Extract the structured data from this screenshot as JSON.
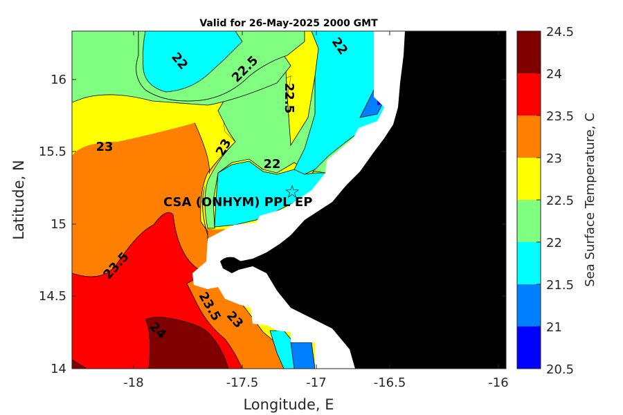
{
  "title": "Valid for 26-May-2025 2000 GMT",
  "xlabel": "Longitude, E",
  "ylabel": "Latitude, N",
  "colorbar_label": "Sea Surface Temperature, C",
  "station_label": "CSA (ONHYM) PPL EP",
  "station_marker": "☆",
  "x_ticks": [
    "-18",
    "-17.5",
    "-17",
    "-16.5",
    "-16"
  ],
  "y_ticks": [
    "16",
    "15.5",
    "15",
    "14.5",
    "14"
  ],
  "colorbar_ticks": [
    "24.5",
    "24",
    "23.5",
    "23",
    "22.5",
    "22",
    "21.5",
    "21",
    "20.5"
  ],
  "contour_labels": [
    "22",
    "22.5",
    "22",
    "22.5",
    "23",
    "23",
    "22",
    "23.5",
    "23.5",
    "23",
    "24"
  ],
  "chart_data": {
    "type": "heatmap",
    "title": "Valid for 26-May-2025 2000 GMT",
    "xlabel": "Longitude, E",
    "ylabel": "Latitude, N",
    "xlim": [
      -18.45,
      -15.9
    ],
    "ylim": [
      14.0,
      16.33
    ],
    "colorbar": {
      "label": "Sea Surface Temperature, C",
      "range": [
        20.5,
        24.5
      ],
      "levels": [
        20.5,
        21,
        21.5,
        22,
        22.5,
        23,
        23.5,
        24,
        24.5
      ],
      "colors": [
        "#0000ff",
        "#0080ff",
        "#00ffff",
        "#80ff80",
        "#ffff00",
        "#ff8000",
        "#ff0000",
        "#800000"
      ]
    },
    "land_color": "#000000",
    "nodata_color": "#ffffff",
    "station": {
      "label": "CSA (ONHYM) PPL EP",
      "lon": -17.1,
      "lat": 15.22
    },
    "contour_labels": [
      {
        "text": "22",
        "lon": -17.75,
        "lat": 16.12
      },
      {
        "text": "22.5",
        "lon": -17.45,
        "lat": 16.05
      },
      {
        "text": "22.5",
        "lon": -17.17,
        "lat": 15.85
      },
      {
        "text": "22",
        "lon": -16.85,
        "lat": 16.22
      },
      {
        "text": "23",
        "lon": -18.2,
        "lat": 15.53
      },
      {
        "text": "23",
        "lon": -17.47,
        "lat": 15.55
      },
      {
        "text": "22",
        "lon": -17.32,
        "lat": 15.42
      },
      {
        "text": "23.5",
        "lon": -18.05,
        "lat": 14.7
      },
      {
        "text": "23.5",
        "lon": -17.6,
        "lat": 14.37
      },
      {
        "text": "23",
        "lon": -17.45,
        "lat": 14.33
      },
      {
        "text": "24",
        "lon": -17.92,
        "lat": 14.27
      }
    ]
  }
}
